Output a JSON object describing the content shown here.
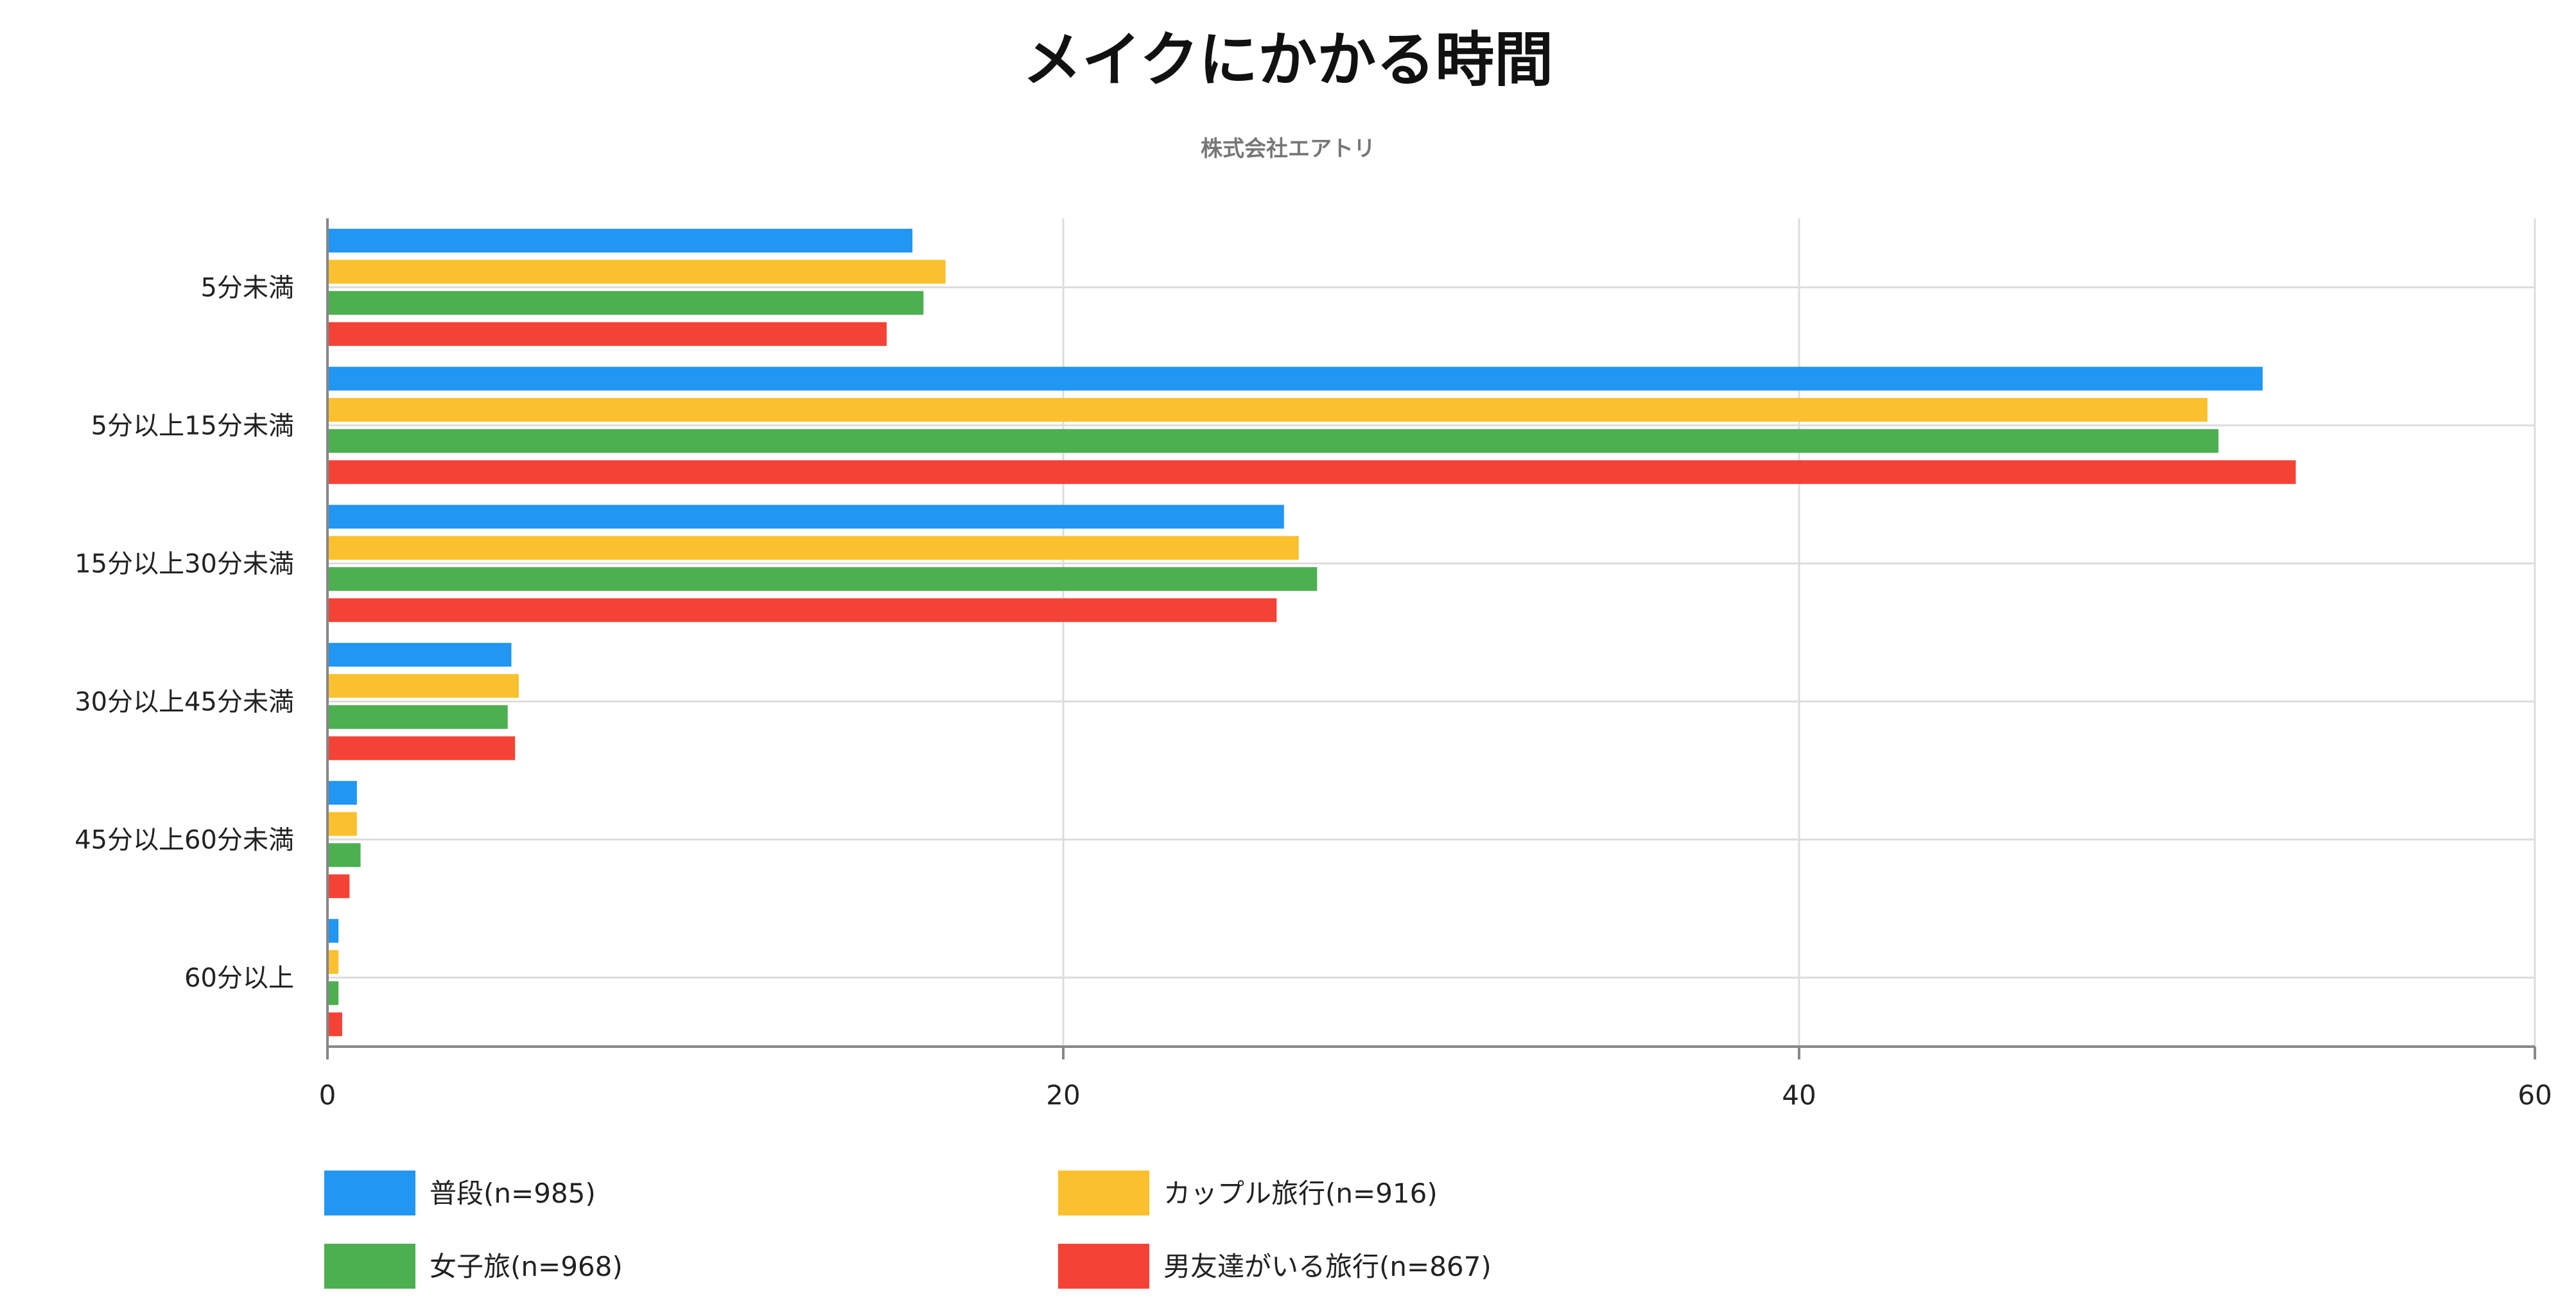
{
  "chart_data": {
    "type": "bar",
    "orientation": "horizontal",
    "title": "メイクにかかる時間",
    "subtitle": "株式会社エアトリ",
    "categories": [
      "5分未満",
      "5分以上15分未満",
      "15分以上30分未満",
      "30分以上45分未満",
      "45分以上60分未満",
      "60分以上"
    ],
    "xlim": [
      0,
      60
    ],
    "x_ticks": [
      0,
      20,
      40,
      60
    ],
    "grid": true,
    "legend_position": "bottom",
    "series": [
      {
        "name": "普段(n=985)",
        "color": "#2196F3",
        "values": [
          15.9,
          52.6,
          26.0,
          5.0,
          0.8,
          0.3
        ]
      },
      {
        "name": "カップル旅行(n=916)",
        "color": "#FBC02D",
        "values": [
          16.8,
          51.1,
          26.4,
          5.2,
          0.8,
          0.3
        ]
      },
      {
        "name": "女子旅(n=968)",
        "color": "#4CAF50",
        "values": [
          16.2,
          51.4,
          26.9,
          4.9,
          0.9,
          0.3
        ]
      },
      {
        "name": "男友達がいる旅行(n=867)",
        "color": "#F44336",
        "values": [
          15.2,
          53.5,
          25.8,
          5.1,
          0.6,
          0.4
        ]
      }
    ]
  }
}
